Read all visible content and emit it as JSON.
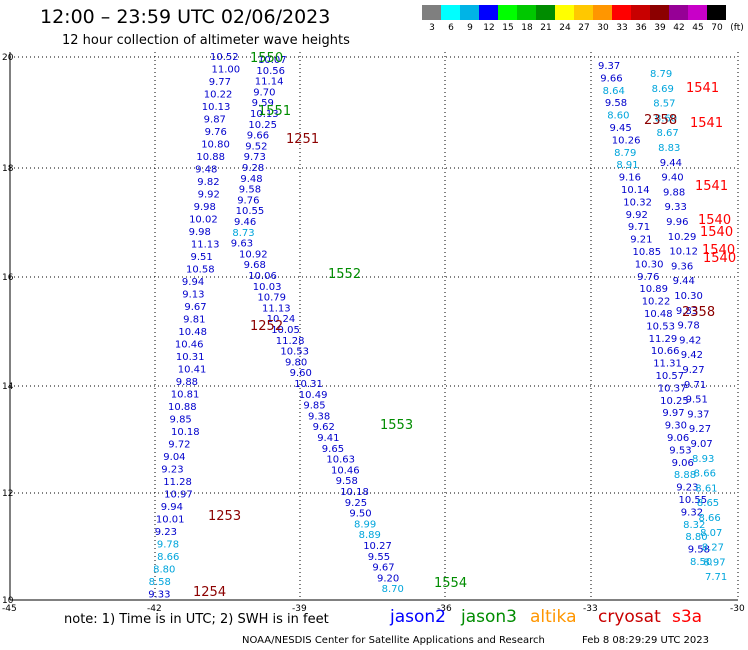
{
  "header": {
    "title": "12:00 – 23:59 UTC 02/06/2023",
    "subtitle": "12 hour collection of altimeter wave heights"
  },
  "scale": {
    "unit": "(ft)",
    "bins": [
      {
        "label": "3",
        "color": "#7f7f7f"
      },
      {
        "label": "6",
        "color": "#00ffff"
      },
      {
        "label": "9",
        "color": "#00b4e6"
      },
      {
        "label": "12",
        "color": "#0000ff"
      },
      {
        "label": "15",
        "color": "#00ff00"
      },
      {
        "label": "18",
        "color": "#00c800"
      },
      {
        "label": "21",
        "color": "#008c00"
      },
      {
        "label": "24",
        "color": "#ffff00"
      },
      {
        "label": "27",
        "color": "#ffc800"
      },
      {
        "label": "30",
        "color": "#ff9600"
      },
      {
        "label": "33",
        "color": "#ff0000"
      },
      {
        "label": "36",
        "color": "#c80000"
      },
      {
        "label": "39",
        "color": "#8c0000"
      },
      {
        "label": "42",
        "color": "#960096"
      },
      {
        "label": "45",
        "color": "#c800c8"
      },
      {
        "label": "70",
        "color": "#000000"
      }
    ]
  },
  "map": {
    "x_ticks": [
      "-45",
      "-42",
      "-39",
      "-36",
      "-33",
      "-30"
    ],
    "y_ticks": [
      "20",
      "18",
      "16",
      "14",
      "12",
      "10"
    ],
    "colors": {
      "jason2": "#0000cc",
      "cyan": "#00a5dc",
      "altika": "#ff9600",
      "cryosat": "#8c0000",
      "s3a": "#ff0000",
      "green": "#008c00"
    },
    "labels": [
      {
        "t": "1550",
        "c": "green"
      },
      {
        "t": "1551",
        "c": "green"
      },
      {
        "t": "1552",
        "c": "green"
      },
      {
        "t": "1553",
        "c": "green"
      },
      {
        "t": "1554",
        "c": "green"
      },
      {
        "t": "1251",
        "c": "cryosat"
      },
      {
        "t": "1252",
        "c": "cryosat"
      },
      {
        "t": "1253",
        "c": "cryosat"
      },
      {
        "t": "1254",
        "c": "cryosat"
      },
      {
        "t": "2358",
        "c": "cryosat"
      },
      {
        "t": "2358",
        "c": "cryosat"
      },
      {
        "t": "1541",
        "c": "s3a"
      },
      {
        "t": "1541",
        "c": "s3a"
      },
      {
        "t": "1541",
        "c": "s3a"
      },
      {
        "t": "1540",
        "c": "s3a"
      },
      {
        "t": "1540",
        "c": "s3a"
      },
      {
        "t": "1540",
        "c": "s3a"
      },
      {
        "t": "1540",
        "c": "s3a"
      }
    ],
    "left_track": {
      "color": "jason2",
      "values": [
        "10.52",
        "11.00",
        "9.77",
        "10.22",
        "10.13",
        "9.87",
        "9.76",
        "10.80",
        "10.88",
        "9.48",
        "9.82",
        "9.92",
        "9.98",
        "10.02",
        "9.98",
        "11.13",
        "9.51",
        "10.58",
        "9.94",
        "9.13",
        "9.67",
        "9.81",
        "10.48",
        "10.46",
        "10.31",
        "10.41",
        "9.88",
        "10.81",
        "10.88",
        "9.85",
        "10.18",
        "9.72",
        "9.04",
        "9.23",
        "11.28",
        "10.97",
        "9.94",
        "10.01",
        "9.23",
        "9.78",
        "8.66",
        "8.80",
        "8.58",
        "9.33"
      ]
    },
    "mid_track": {
      "color": "jason2",
      "values": [
        "10.07",
        "10.56",
        "11.14",
        "9.70",
        "9.59",
        "10.13",
        "10.25",
        "9.66",
        "9.52",
        "9.73",
        "9.28",
        "9.48",
        "9.58",
        "9.76",
        "10.55",
        "9.46",
        "8.73",
        "9.63",
        "10.92",
        "9.68",
        "10.06",
        "10.03",
        "10.79",
        "11.13",
        "10.24",
        "10.05",
        "11.28",
        "10.53",
        "9.80",
        "9.60",
        "10.31",
        "10.49",
        "9.85",
        "9.38",
        "9.62",
        "9.41",
        "9.65",
        "10.63",
        "10.46",
        "9.58",
        "10.18",
        "9.25",
        "9.50",
        "8.99",
        "8.89",
        "10.27",
        "9.55",
        "9.67",
        "9.20",
        "8.70"
      ]
    },
    "right_track": {
      "color": "jason2",
      "values": [
        "9.37",
        "9.66",
        "8.64",
        "9.58",
        "8.60",
        "9.45",
        "10.26",
        "8.79",
        "8.91",
        "9.16",
        "10.14",
        "10.32",
        "9.92",
        "9.71",
        "9.21",
        "10.85",
        "10.30",
        "9.76",
        "10.89",
        "10.22",
        "10.48",
        "10.53",
        "11.29",
        "10.66",
        "11.31",
        "10.57",
        "10.37",
        "10.25",
        "9.97",
        "9.30",
        "9.06",
        "9.53",
        "9.06",
        "8.88",
        "9.23",
        "10.55",
        "9.32",
        "8.32",
        "8.80",
        "9.58",
        "8.50"
      ]
    },
    "far_right_track": {
      "values": [
        "8.79",
        "8.69",
        "8.57",
        "8.60",
        "8.67",
        "8.83",
        "9.44",
        "9.40",
        "9.88",
        "9.33",
        "9.96",
        "10.29",
        "10.12",
        "9.36",
        "9.44",
        "10.30",
        "9.83",
        "9.78",
        "9.42",
        "9.42",
        "9.27",
        "9.71",
        "9.51",
        "9.37",
        "9.27",
        "9.07",
        "8.93",
        "8.66",
        "8.61",
        "8.65",
        "8.66",
        "8.07",
        "8.27",
        "8.97",
        "7.71"
      ]
    }
  },
  "footer": {
    "note": "note: 1) Time is in UTC; 2) SWH is in feet",
    "legend": [
      {
        "label": "jason2",
        "color": "#0000ff"
      },
      {
        "label": "jason3",
        "color": "#008c00"
      },
      {
        "label": "altika",
        "color": "#ff9600"
      },
      {
        "label": "cryosat",
        "color": "#c80000"
      },
      {
        "label": "s3a",
        "color": "#ff0000"
      }
    ],
    "credit": "NOAA/NESDIS Center for Satellite Applications and Research",
    "timestamp": "Feb  8 08:29:29 UTC 2023"
  }
}
